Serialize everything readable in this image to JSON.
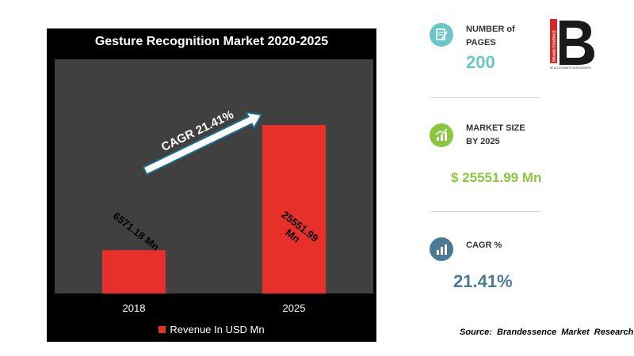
{
  "chart_data": {
    "type": "bar",
    "title": "Gesture Recognition Market 2020-2025",
    "categories": [
      "2018",
      "2025"
    ],
    "series": [
      {
        "name": "Revenue In USD Mn",
        "values": [
          6571.18,
          25551.99
        ]
      }
    ],
    "data_labels": [
      "6571.18  Mn",
      "25551.99 Mn"
    ],
    "annotation": "CAGR 21.41%",
    "ylim": [
      0,
      35500
    ],
    "grid": false,
    "legend_position": "bottom",
    "colors": {
      "bar": "#e8302a",
      "plot_bg": "#404040",
      "frame_bg": "#000000"
    }
  },
  "stats": {
    "pages": {
      "label_line1": "NUMBER of",
      "label_line2": "PAGES",
      "value": "200",
      "color": "#6cc5c8"
    },
    "market_size": {
      "label_line1": "MARKET SIZE",
      "label_line2": "BY 2025",
      "value": "$ 25551.99 Mn",
      "color": "#8cc63f"
    },
    "cagr": {
      "label": "CAGR %",
      "value": "21.41%",
      "color": "#4a7a94"
    }
  },
  "logo": {
    "brand": "BRAND ESSENCE",
    "tagline": "BE ACCELERATE YOUR GROWTH"
  },
  "source": "Source:  Brandessence  Market  Research",
  "icons": {
    "pages": "document-edit-icon",
    "market_size": "growth-chart-icon",
    "cagr": "bar-chart-icon"
  }
}
